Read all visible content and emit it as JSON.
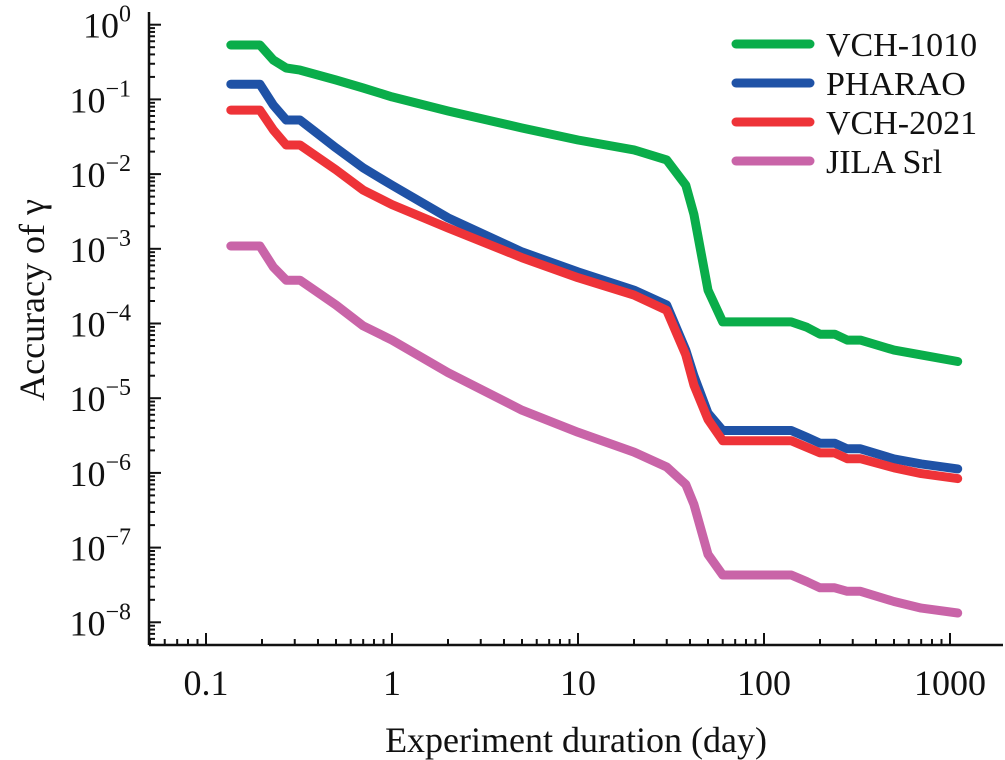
{
  "chart_data": {
    "type": "line",
    "title": "",
    "xlabel": "Experiment duration (day)",
    "ylabel": "Accuracy of γ",
    "xscale": "log",
    "yscale": "log",
    "xlim": [
      0.05,
      2000
    ],
    "ylim": [
      5e-09,
      1.6
    ],
    "x_ticks": [
      0.1,
      1,
      10,
      100,
      1000
    ],
    "x_tick_labels": [
      "0.1",
      "1",
      "10",
      "100",
      "1000"
    ],
    "y_ticks": [
      1,
      0.1,
      0.01,
      0.001,
      0.0001,
      1e-05,
      1e-06,
      1e-07,
      1e-08
    ],
    "y_tick_labels": [
      {
        "base": "10",
        "exp": "0"
      },
      {
        "base": "10",
        "exp": "−1"
      },
      {
        "base": "10",
        "exp": "−2"
      },
      {
        "base": "10",
        "exp": "−3"
      },
      {
        "base": "10",
        "exp": "−4"
      },
      {
        "base": "10",
        "exp": "−5"
      },
      {
        "base": "10",
        "exp": "−6"
      },
      {
        "base": "10",
        "exp": "−7"
      },
      {
        "base": "10",
        "exp": "−8"
      }
    ],
    "grid": false,
    "legend_position": "top-right",
    "x": [
      0.136,
      0.195,
      0.23,
      0.27,
      0.32,
      0.5,
      0.7,
      1,
      2,
      5,
      10,
      20,
      30,
      38,
      42,
      50,
      60,
      100,
      140,
      170,
      200,
      240,
      280,
      330,
      500,
      700,
      1100
    ],
    "series": [
      {
        "name": "VCH-1010",
        "color": "#0aad4a",
        "values": [
          0.535,
          0.535,
          0.337,
          0.263,
          0.247,
          0.182,
          0.142,
          0.108,
          0.07,
          0.0414,
          0.0286,
          0.0211,
          0.0155,
          0.0071,
          0.0029,
          0.00028,
          0.000105,
          0.000105,
          0.000105,
          8.9e-05,
          7.2e-05,
          7.2e-05,
          6e-05,
          6e-05,
          4.4e-05,
          3.8e-05,
          3.1e-05
        ]
      },
      {
        "name": "PHARAO",
        "color": "#1f52a6",
        "values": [
          0.16,
          0.16,
          0.084,
          0.053,
          0.053,
          0.0224,
          0.0121,
          0.0071,
          0.0026,
          0.00091,
          0.00049,
          0.00028,
          0.000177,
          4.4e-05,
          2e-05,
          6.3e-06,
          3.7e-06,
          3.7e-06,
          3.7e-06,
          3e-06,
          2.5e-06,
          2.5e-06,
          2.1e-06,
          2.1e-06,
          1.54e-06,
          1.32e-06,
          1.13e-06
        ]
      },
      {
        "name": "VCH-2021",
        "color": "#ee3338",
        "values": [
          0.072,
          0.072,
          0.039,
          0.0245,
          0.0245,
          0.0114,
          0.0061,
          0.0039,
          0.0019,
          0.00076,
          0.00041,
          0.00024,
          0.00015,
          3.8e-05,
          1.5e-05,
          5.2e-06,
          2.7e-06,
          2.7e-06,
          2.7e-06,
          2.2e-06,
          1.85e-06,
          1.85e-06,
          1.55e-06,
          1.55e-06,
          1.17e-06,
          9.8e-07,
          8.4e-07
        ]
      },
      {
        "name": "JILA Srl",
        "color": "#c964a8",
        "values": [
          0.00109,
          0.00109,
          0.00057,
          0.00038,
          0.00038,
          0.000177,
          9.3e-05,
          6e-05,
          2.2e-05,
          6.9e-06,
          3.5e-06,
          1.9e-06,
          1.2e-06,
          7e-07,
          3.8e-07,
          8.1e-08,
          4.3e-08,
          4.3e-08,
          4.3e-08,
          3.5e-08,
          2.9e-08,
          2.9e-08,
          2.6e-08,
          2.6e-08,
          1.9e-08,
          1.55e-08,
          1.33e-08
        ]
      }
    ]
  }
}
